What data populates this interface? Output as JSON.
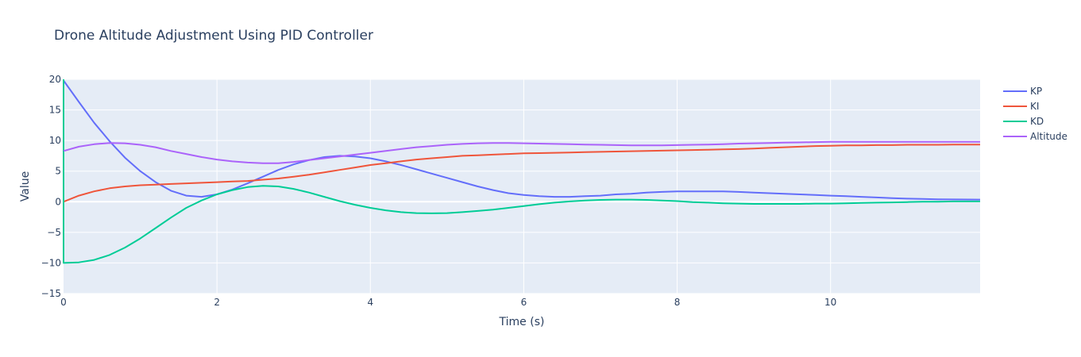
{
  "chart_data": {
    "type": "line",
    "title": "Drone Altitude Adjustment Using PID Controller",
    "xlabel": "Time (s)",
    "ylabel": "Value",
    "xlim": [
      0,
      11.95
    ],
    "ylim": [
      -15,
      20
    ],
    "xticks": [
      0,
      2,
      4,
      6,
      8,
      10
    ],
    "yticks": [
      -15,
      -10,
      -5,
      0,
      5,
      10,
      15,
      20
    ],
    "grid": true,
    "legend_position": "top-right",
    "colors": {
      "plot_bg": "#e5ecf6",
      "grid": "#ffffff",
      "text": "#2a3f5f"
    },
    "series": [
      {
        "name": "KP",
        "color": "#636efa",
        "x": [
          0,
          0.2,
          0.4,
          0.6,
          0.8,
          1.0,
          1.2,
          1.4,
          1.6,
          1.8,
          2.0,
          2.2,
          2.4,
          2.6,
          2.8,
          3.0,
          3.2,
          3.4,
          3.6,
          3.8,
          4.0,
          4.2,
          4.4,
          4.6,
          4.8,
          5.0,
          5.2,
          5.4,
          5.6,
          5.8,
          6.0,
          6.2,
          6.4,
          6.6,
          6.8,
          7.0,
          7.2,
          7.4,
          7.6,
          7.8,
          8.0,
          8.2,
          8.4,
          8.6,
          8.8,
          9.0,
          9.2,
          9.4,
          9.6,
          9.8,
          10.0,
          10.2,
          10.4,
          10.6,
          10.8,
          11.0,
          11.2,
          11.4,
          11.6,
          11.8,
          11.95
        ],
        "y": [
          19.8,
          16.3,
          12.9,
          9.9,
          7.2,
          5.0,
          3.2,
          1.8,
          1.0,
          0.8,
          1.2,
          2.0,
          3.0,
          4.1,
          5.2,
          6.1,
          6.8,
          7.3,
          7.5,
          7.4,
          7.1,
          6.6,
          6.0,
          5.3,
          4.6,
          3.9,
          3.2,
          2.5,
          1.9,
          1.4,
          1.1,
          0.9,
          0.8,
          0.8,
          0.9,
          1.0,
          1.2,
          1.3,
          1.5,
          1.6,
          1.7,
          1.7,
          1.7,
          1.7,
          1.6,
          1.5,
          1.4,
          1.3,
          1.2,
          1.1,
          1.0,
          0.9,
          0.8,
          0.7,
          0.6,
          0.5,
          0.45,
          0.4,
          0.38,
          0.36,
          0.35
        ]
      },
      {
        "name": "KI",
        "color": "#ef553b",
        "x": [
          0,
          0.2,
          0.4,
          0.6,
          0.8,
          1.0,
          1.2,
          1.4,
          1.6,
          1.8,
          2.0,
          2.2,
          2.4,
          2.6,
          2.8,
          3.0,
          3.2,
          3.4,
          3.6,
          3.8,
          4.0,
          4.2,
          4.4,
          4.6,
          4.8,
          5.0,
          5.2,
          5.4,
          5.6,
          5.8,
          6.0,
          6.2,
          6.4,
          6.6,
          6.8,
          7.0,
          7.2,
          7.4,
          7.6,
          7.8,
          8.0,
          8.2,
          8.4,
          8.6,
          8.8,
          9.0,
          9.2,
          9.4,
          9.6,
          9.8,
          10.0,
          10.2,
          10.4,
          10.6,
          10.8,
          11.0,
          11.2,
          11.4,
          11.6,
          11.8,
          11.95
        ],
        "y": [
          0.0,
          1.0,
          1.7,
          2.2,
          2.5,
          2.7,
          2.8,
          2.9,
          3.0,
          3.1,
          3.2,
          3.3,
          3.4,
          3.6,
          3.8,
          4.1,
          4.4,
          4.8,
          5.2,
          5.6,
          6.0,
          6.3,
          6.6,
          6.9,
          7.1,
          7.3,
          7.5,
          7.6,
          7.7,
          7.8,
          7.9,
          7.95,
          8.0,
          8.05,
          8.1,
          8.15,
          8.2,
          8.25,
          8.3,
          8.35,
          8.4,
          8.45,
          8.5,
          8.55,
          8.6,
          8.7,
          8.8,
          8.9,
          9.0,
          9.1,
          9.15,
          9.2,
          9.2,
          9.25,
          9.25,
          9.3,
          9.3,
          9.3,
          9.35,
          9.35,
          9.35
        ]
      },
      {
        "name": "KD",
        "color": "#00cc96",
        "x": [
          0,
          0,
          0.2,
          0.4,
          0.6,
          0.8,
          1.0,
          1.2,
          1.4,
          1.6,
          1.8,
          2.0,
          2.2,
          2.4,
          2.6,
          2.8,
          3.0,
          3.2,
          3.4,
          3.6,
          3.8,
          4.0,
          4.2,
          4.4,
          4.6,
          4.8,
          5.0,
          5.2,
          5.4,
          5.6,
          5.8,
          6.0,
          6.2,
          6.4,
          6.6,
          6.8,
          7.0,
          7.2,
          7.4,
          7.6,
          7.8,
          8.0,
          8.2,
          8.4,
          8.6,
          8.8,
          9.0,
          9.2,
          9.4,
          9.6,
          9.8,
          10.0,
          10.2,
          10.4,
          10.6,
          10.8,
          11.0,
          11.2,
          11.4,
          11.6,
          11.8,
          11.95
        ],
        "y": [
          20.0,
          -10.0,
          -9.9,
          -9.5,
          -8.7,
          -7.5,
          -6.0,
          -4.3,
          -2.6,
          -1.0,
          0.2,
          1.2,
          1.9,
          2.4,
          2.6,
          2.5,
          2.1,
          1.5,
          0.8,
          0.1,
          -0.5,
          -1.0,
          -1.4,
          -1.7,
          -1.85,
          -1.9,
          -1.85,
          -1.7,
          -1.5,
          -1.3,
          -1.0,
          -0.7,
          -0.4,
          -0.15,
          0.05,
          0.2,
          0.3,
          0.35,
          0.35,
          0.3,
          0.2,
          0.1,
          -0.05,
          -0.15,
          -0.25,
          -0.3,
          -0.35,
          -0.35,
          -0.35,
          -0.35,
          -0.3,
          -0.3,
          -0.25,
          -0.2,
          -0.15,
          -0.1,
          -0.05,
          0.0,
          0.0,
          0.05,
          0.05,
          0.05
        ]
      },
      {
        "name": "Altitude",
        "color": "#ab63fa",
        "x": [
          0,
          0.2,
          0.4,
          0.6,
          0.8,
          1.0,
          1.2,
          1.4,
          1.6,
          1.8,
          2.0,
          2.2,
          2.4,
          2.6,
          2.8,
          3.0,
          3.2,
          3.4,
          3.6,
          3.8,
          4.0,
          4.2,
          4.4,
          4.6,
          4.8,
          5.0,
          5.2,
          5.4,
          5.6,
          5.8,
          6.0,
          6.2,
          6.4,
          6.6,
          6.8,
          7.0,
          7.2,
          7.4,
          7.6,
          7.8,
          8.0,
          8.2,
          8.4,
          8.6,
          8.8,
          9.0,
          9.2,
          9.4,
          9.6,
          9.8,
          10.0,
          10.2,
          10.4,
          10.6,
          10.8,
          11.0,
          11.2,
          11.4,
          11.6,
          11.8,
          11.95
        ],
        "y": [
          8.3,
          9.0,
          9.4,
          9.6,
          9.55,
          9.3,
          8.9,
          8.3,
          7.8,
          7.3,
          6.9,
          6.6,
          6.4,
          6.3,
          6.3,
          6.5,
          6.8,
          7.1,
          7.4,
          7.7,
          8.0,
          8.3,
          8.6,
          8.9,
          9.1,
          9.3,
          9.45,
          9.55,
          9.6,
          9.6,
          9.55,
          9.5,
          9.45,
          9.4,
          9.35,
          9.3,
          9.25,
          9.2,
          9.2,
          9.2,
          9.25,
          9.3,
          9.35,
          9.4,
          9.5,
          9.55,
          9.6,
          9.65,
          9.7,
          9.75,
          9.8,
          9.8,
          9.8,
          9.8,
          9.8,
          9.8,
          9.8,
          9.8,
          9.8,
          9.8,
          9.8
        ]
      }
    ]
  }
}
